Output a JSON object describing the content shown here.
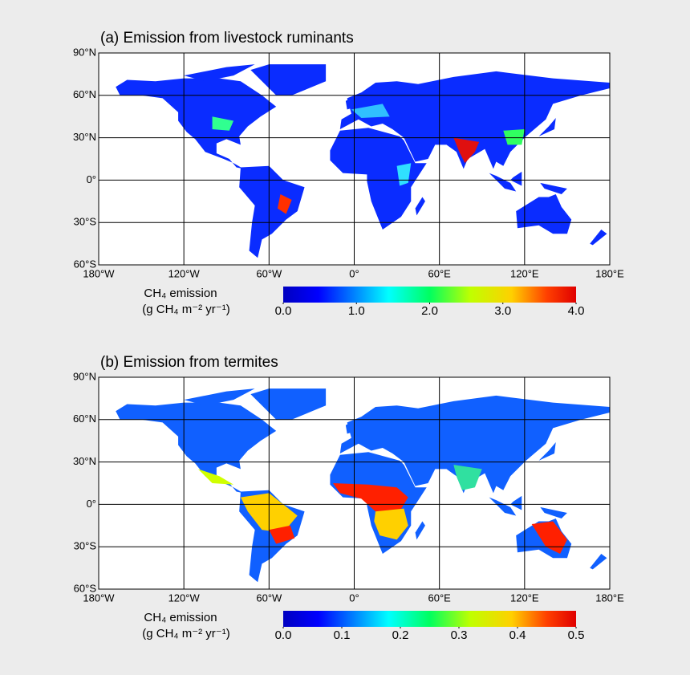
{
  "panels": [
    {
      "title": "(a) Emission from livestock ruminants",
      "lon_lim": [
        -180,
        180
      ],
      "lat_lim": [
        -60,
        90
      ],
      "lon_ticks": [
        {
          "value": -180,
          "label": "180°W"
        },
        {
          "value": -120,
          "label": "120°W"
        },
        {
          "value": -60,
          "label": "60°W"
        },
        {
          "value": 0,
          "label": "0°"
        },
        {
          "value": 60,
          "label": "60°E"
        },
        {
          "value": 120,
          "label": "120°E"
        },
        {
          "value": 180,
          "label": "180°E"
        }
      ],
      "lat_ticks": [
        {
          "value": 90,
          "label": "90°N"
        },
        {
          "value": 60,
          "label": "60°N"
        },
        {
          "value": 30,
          "label": "30°N"
        },
        {
          "value": 0,
          "label": "0°"
        },
        {
          "value": -30,
          "label": "30°S"
        },
        {
          "value": -60,
          "label": "60°S"
        }
      ],
      "colorbar": {
        "label": "CH₄ emission",
        "units": "(g CH₄ m⁻² yr⁻¹)",
        "lim": [
          0,
          4
        ],
        "ticks": [
          {
            "value": 0,
            "label": "0.0"
          },
          {
            "value": 1,
            "label": "1.0"
          },
          {
            "value": 2,
            "label": "2.0"
          },
          {
            "value": 3,
            "label": "3.0"
          },
          {
            "value": 4,
            "label": "4.0"
          }
        ]
      }
    },
    {
      "title": "(b) Emission from termites",
      "lon_lim": [
        -180,
        180
      ],
      "lat_lim": [
        -60,
        90
      ],
      "lon_ticks": [
        {
          "value": -180,
          "label": "180°W"
        },
        {
          "value": -120,
          "label": "120°W"
        },
        {
          "value": -60,
          "label": "60°W"
        },
        {
          "value": 0,
          "label": "0°"
        },
        {
          "value": 60,
          "label": "60°E"
        },
        {
          "value": 120,
          "label": "120°E"
        },
        {
          "value": 180,
          "label": "180°E"
        }
      ],
      "lat_ticks": [
        {
          "value": 90,
          "label": "90°N"
        },
        {
          "value": 60,
          "label": "60°N"
        },
        {
          "value": 30,
          "label": "30°N"
        },
        {
          "value": 0,
          "label": "0°"
        },
        {
          "value": -30,
          "label": "30°S"
        },
        {
          "value": -60,
          "label": "60°S"
        }
      ],
      "colorbar": {
        "label": "CH₄ emission",
        "units": "(g CH₄ m⁻² yr⁻¹)",
        "lim": [
          0,
          0.5
        ],
        "ticks": [
          {
            "value": 0,
            "label": "0.0"
          },
          {
            "value": 0.1,
            "label": "0.1"
          },
          {
            "value": 0.2,
            "label": "0.2"
          },
          {
            "value": 0.3,
            "label": "0.3"
          },
          {
            "value": 0.4,
            "label": "0.4"
          },
          {
            "value": 0.5,
            "label": "0.5"
          }
        ]
      }
    }
  ]
}
